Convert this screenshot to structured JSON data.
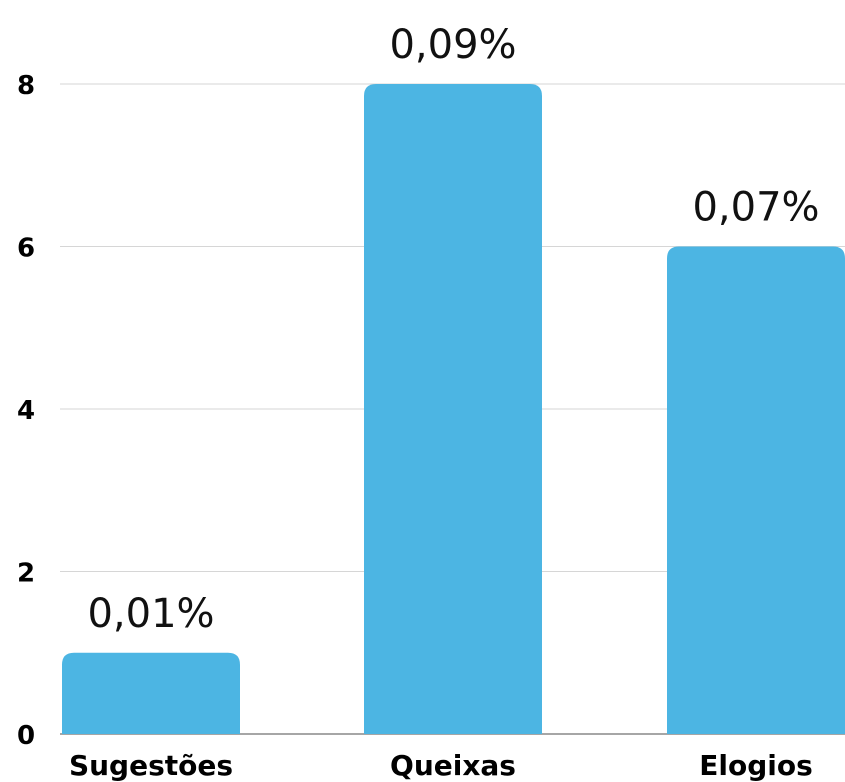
{
  "chart_data": {
    "type": "bar",
    "title": "",
    "xlabel": "",
    "ylabel": "",
    "categories": [
      "Sugestões",
      "Queixas",
      "Elogios"
    ],
    "values": [
      1,
      8,
      6
    ],
    "data_labels": [
      "0,01%",
      "0,09%",
      "0,07%"
    ],
    "ylim": [
      0,
      8
    ],
    "yticks": [
      "0",
      "2",
      "4",
      "6",
      "8"
    ],
    "ytick_values": [
      0,
      2,
      4,
      6,
      8
    ],
    "grid": true,
    "legend": "none",
    "colors": {
      "bar": "#4cb5e3",
      "grid": "#d6d6d6",
      "baseline": "#888888"
    }
  }
}
